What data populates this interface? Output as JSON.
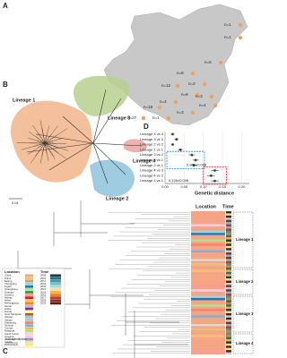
{
  "panel_a": {
    "label": "A",
    "counts": [
      "n=1",
      "n=1",
      "n=5",
      "n=8",
      "n=12",
      "n=2",
      "n=6",
      "n=3",
      "n=4",
      "n=4",
      "n=18",
      "n=1",
      "n=27",
      "n=3"
    ]
  },
  "panel_b": {
    "label": "B",
    "lineages": [
      "Lineage 1",
      "Lineage 2",
      "Lineage 3",
      "Lineage 4"
    ],
    "colors": [
      "#f2b48a",
      "#8fc3dc",
      "#b7cf8e",
      "#e7a5a0"
    ],
    "scale": "0.01"
  },
  "chart_data": {
    "type": "errorbar",
    "label": "D",
    "categories": [
      "Lineage 4 vs 4",
      "Lineage 3 vs 3",
      "Lineage 2 vs 2",
      "Lineage 1 vs 1",
      "Lineage 3 vs 2",
      "Lineage 3 vs 1",
      "Lineage 2 vs 1",
      "Lineage 4 vs 3",
      "Lineage 4 vs 2",
      "Lineage 4 vs 1"
    ],
    "values": [
      0.02,
      0.03,
      0.02,
      0.04,
      0.07,
      0.08,
      0.075,
      0.13,
      0.12,
      0.13
    ],
    "errors": [
      0.005,
      0.005,
      0.004,
      0.006,
      0.008,
      0.008,
      0.008,
      0.01,
      0.01,
      0.01
    ],
    "color": "#2d4f2d",
    "xlabel": "Genetic distance",
    "xlim": [
      0,
      0.22
    ],
    "xticks": [
      {
        "value": 0,
        "label": "0.00"
      },
      0.05,
      {
        "value": 0.1,
        "label": "0.10"
      },
      0.15,
      {
        "value": 0.2,
        "label": "0.20"
      }
    ],
    "annotations": [
      {
        "text": "0.076±0.008",
        "color": "#1f8fc9"
      },
      {
        "text": "0.126±0.008",
        "color": "#e02020"
      }
    ]
  },
  "panel_c": {
    "label": "C",
    "location_header": "Location",
    "time_header": "Time",
    "lineages": [
      "Lineage 1",
      "Lineage 2",
      "Lineage 3",
      "Lineage 4"
    ],
    "scale": "0.02 substitution",
    "locations": [
      {
        "name": "China",
        "color": "#f4a582"
      },
      {
        "name": "Anhui",
        "color": "#e8c07a"
      },
      {
        "name": "Beijing",
        "color": "#c9a36b"
      },
      {
        "name": "Chongqing",
        "color": "#a6cee3"
      },
      {
        "name": "Fujian",
        "color": "#1f78b4"
      },
      {
        "name": "Guangdong",
        "color": "#b2df8a"
      },
      {
        "name": "Guangxi",
        "color": "#33a02c"
      },
      {
        "name": "Guizhou",
        "color": "#fb9a99"
      },
      {
        "name": "Hainan",
        "color": "#e31a1c"
      },
      {
        "name": "Hebei",
        "color": "#fdbf6f"
      },
      {
        "name": "Heilongjiang",
        "color": "#ff7f00"
      },
      {
        "name": "Henan",
        "color": "#cab2d6"
      },
      {
        "name": "Hubei",
        "color": "#6a3d9a"
      },
      {
        "name": "Hunan",
        "color": "#ffff99"
      },
      {
        "name": "Inner Mongolia",
        "color": "#b15928"
      },
      {
        "name": "Jiangsu",
        "color": "#8dd3c7"
      },
      {
        "name": "Jiangxi",
        "color": "#bebada"
      },
      {
        "name": "Shandong",
        "color": "#fb8072"
      },
      {
        "name": "Sichuan",
        "color": "#80b1d3"
      },
      {
        "name": "Yunnan",
        "color": "#fdb462"
      },
      {
        "name": "Malaysia",
        "color": "#b3de69"
      },
      {
        "name": "South Korea",
        "color": "#fccde5"
      },
      {
        "name": "America",
        "color": "#d9d9d9"
      },
      {
        "name": "Germany",
        "color": "#bc80bd"
      },
      {
        "name": "Austria",
        "color": "#ccebc5"
      },
      {
        "name": "Netherlands",
        "color": "#ffed6f"
      }
    ],
    "times": [
      {
        "name": "2009",
        "color": "#1b3a4b"
      },
      {
        "name": "2010",
        "color": "#2a6f7a"
      },
      {
        "name": "2011",
        "color": "#3c9aa8"
      },
      {
        "name": "2012",
        "color": "#6fbfcf"
      },
      {
        "name": "2013",
        "color": "#a8d8e0"
      },
      {
        "name": "2014",
        "color": "#f6e08a"
      },
      {
        "name": "2015",
        "color": "#f5b041"
      },
      {
        "name": "2016",
        "color": "#e67e22"
      },
      {
        "name": "2017",
        "color": "#c0392b"
      },
      {
        "name": "2018",
        "color": "#922b21"
      },
      {
        "name": "2019",
        "color": "#5b1a13"
      }
    ]
  }
}
